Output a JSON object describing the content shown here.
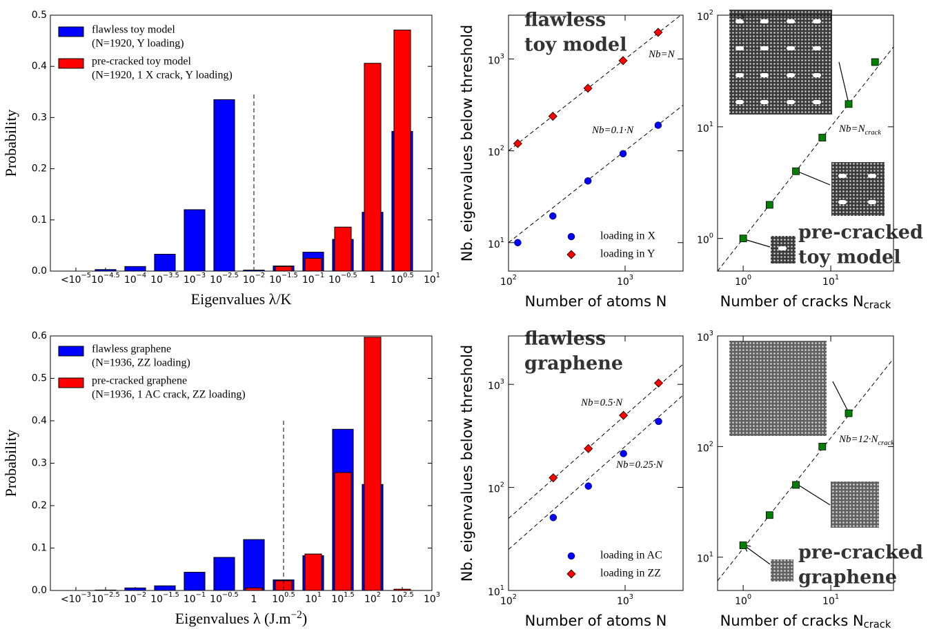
{
  "chart_data": [
    {
      "type": "bar",
      "xlabel": "Eigenvalues λ/K",
      "ylabel": "Probability",
      "categories": [
        {
          "text": "<10",
          "sup": "−5"
        },
        {
          "text": "10",
          "sup": "−4.5"
        },
        {
          "text": "10",
          "sup": "−4"
        },
        {
          "text": "10",
          "sup": "−3.5"
        },
        {
          "text": "10",
          "sup": "−3"
        },
        {
          "text": "10",
          "sup": "−2.5"
        },
        {
          "text": "10",
          "sup": "−2"
        },
        {
          "text": "10",
          "sup": "−1.5"
        },
        {
          "text": "10",
          "sup": "−1"
        },
        {
          "text": "10",
          "sup": "−0.5"
        },
        {
          "text": "1"
        },
        {
          "text": "10",
          "sup": "0.5"
        },
        {
          "text": "10",
          "sup": "1"
        }
      ],
      "series": [
        {
          "name": "flawless toy model",
          "detail": "(N=1920, Y loading)",
          "color": "#0000ff",
          "values": [
            0,
            0.003,
            0.009,
            0.033,
            0.12,
            0.335,
            0.002,
            0.01,
            0.037,
            0.062,
            0.115,
            0.273,
            null
          ]
        },
        {
          "name": "pre-cracked toy model",
          "detail": "(N=1920, 1 X crack, Y loading)",
          "color": "#ff0000",
          "values": [
            0,
            0,
            0,
            0,
            0,
            0,
            0,
            0.009,
            0.025,
            0.086,
            0.406,
            0.471,
            null
          ]
        }
      ],
      "ylim": [
        0,
        0.5
      ],
      "yticks": [
        {
          "value": 0,
          "label": "0.0"
        },
        0.1,
        0.2,
        0.3,
        0.4,
        0.5
      ]
    },
    {
      "type": "scatter",
      "xlabel": "Number of atoms N",
      "ylabel": "Nb. eigenvalues below threshold",
      "xscale": "log",
      "yscale": "log",
      "xlim": [
        100,
        3140
      ],
      "xticks": [
        {
          "value": 100,
          "label": {
            "text": "10",
            "sup": "2"
          }
        },
        {
          "value": 1000,
          "label": {
            "text": "10",
            "sup": "3"
          }
        }
      ],
      "ylim": [
        4.9,
        3000
      ],
      "yticks": [
        {
          "value": 10,
          "label": {
            "text": "10",
            "sup": "1"
          }
        },
        {
          "value": 100,
          "label": {
            "text": "10",
            "sup": "2"
          }
        },
        {
          "value": 1000,
          "label": {
            "text": "10",
            "sup": "3"
          }
        }
      ],
      "series": [
        {
          "name": "loading in X",
          "color": "#0000ff",
          "marker": "circle",
          "x": [
            120,
            240,
            480,
            960,
            1920
          ],
          "values": [
            10,
            19.5,
            47,
            93,
            190
          ]
        },
        {
          "name": "loading in Y",
          "color": "#ff0000",
          "marker": "diamond",
          "x": [
            120,
            240,
            480,
            960,
            1920
          ],
          "values": [
            120,
            238,
            480,
            960,
            1950
          ]
        }
      ],
      "fits": [
        {
          "label": {
            "text": "Nb=N"
          },
          "slope": 1
        },
        {
          "label": {
            "text": "Nb=0.1·N"
          },
          "slope": 0.1
        }
      ],
      "annotation": [
        "flawless",
        "toy model"
      ]
    },
    {
      "type": "scatter",
      "xlabel": {
        "text": "Number of cracks N",
        "sub": "crack"
      },
      "xscale": "log",
      "yscale": "log",
      "xlim": [
        0.51,
        52
      ],
      "xticks": [
        {
          "value": 1,
          "label": {
            "text": "10",
            "sup": "0"
          }
        },
        {
          "value": 10,
          "label": {
            "text": "10",
            "sup": "1"
          }
        }
      ],
      "ylim": [
        0.51,
        100
      ],
      "yticks": [
        {
          "value": 1,
          "label": {
            "text": "10",
            "sup": "0"
          }
        },
        {
          "value": 10,
          "label": {
            "text": "10",
            "sup": "1"
          }
        },
        {
          "value": 100,
          "label": {
            "text": "10",
            "sup": "2"
          }
        }
      ],
      "series": [
        {
          "color": "#008000",
          "marker": "square",
          "x": [
            1,
            2,
            4,
            8,
            16,
            32
          ],
          "values": [
            1,
            2,
            4,
            8,
            16,
            38
          ]
        }
      ],
      "fits": [
        {
          "label": {
            "text": "Nb=N",
            "sub": "crack"
          },
          "slope": 1
        }
      ],
      "annotation": [
        "pre-cracked",
        "toy model"
      ]
    },
    {
      "type": "bar",
      "xlabel": {
        "text": "Eigenvalues λ (J.m",
        "sup": "−2",
        "tail": ")"
      },
      "ylabel": "Probability",
      "categories": [
        {
          "text": "<10",
          "sup": "−3"
        },
        {
          "text": "10",
          "sup": "−2.5"
        },
        {
          "text": "10",
          "sup": "−2"
        },
        {
          "text": "10",
          "sup": "−1.5"
        },
        {
          "text": "10",
          "sup": "−1"
        },
        {
          "text": "10",
          "sup": "−0.5"
        },
        {
          "text": "1"
        },
        {
          "text": "10",
          "sup": "0.5"
        },
        {
          "text": "10",
          "sup": "1"
        },
        {
          "text": "10",
          "sup": "1.5"
        },
        {
          "text": "10",
          "sup": "2"
        },
        {
          "text": "10",
          "sup": "2.5"
        },
        {
          "text": "10",
          "sup": "3"
        }
      ],
      "series": [
        {
          "name": "flawless graphene",
          "detail": "(N=1936, ZZ loading)",
          "color": "#0000ff",
          "values": [
            0,
            0.001,
            0.006,
            0.011,
            0.043,
            0.078,
            0.12,
            0.025,
            0.082,
            0.38,
            0.25,
            0,
            null
          ]
        },
        {
          "name": "pre-cracked graphene",
          "detail": "(N=1936, 1 AC crack, ZZ loading)",
          "color": "#ff0000",
          "values": [
            0,
            0,
            0,
            0,
            0,
            0,
            0.006,
            0.023,
            0.086,
            0.278,
            0.597,
            0.003,
            null
          ]
        }
      ],
      "ylim": [
        0,
        0.6
      ],
      "yticks": [
        {
          "value": 0,
          "label": "0.0"
        },
        0.1,
        0.2,
        0.3,
        0.4,
        0.5,
        0.6
      ]
    },
    {
      "type": "scatter",
      "xlabel": "Number of atoms N",
      "ylabel": "Nb. eigenvalues below threshold",
      "xscale": "log",
      "yscale": "log",
      "xlim": [
        100,
        3140
      ],
      "xticks": [
        {
          "value": 100,
          "label": {
            "text": "10",
            "sup": "2"
          }
        },
        {
          "value": 1000,
          "label": {
            "text": "10",
            "sup": "3"
          }
        }
      ],
      "ylim": [
        10,
        2950
      ],
      "yticks": [
        {
          "value": 10,
          "label": {
            "text": "10",
            "sup": "1"
          }
        },
        {
          "value": 100,
          "label": {
            "text": "10",
            "sup": "2"
          }
        },
        {
          "value": 1000,
          "label": {
            "text": "10",
            "sup": "3"
          }
        }
      ],
      "series": [
        {
          "name": "loading in AC",
          "color": "#0000ff",
          "marker": "circle",
          "x": [
            242,
            484,
            968,
            1936
          ],
          "values": [
            51,
            103,
            213,
            437
          ]
        },
        {
          "name": "loading in ZZ",
          "color": "#ff0000",
          "marker": "diamond",
          "x": [
            242,
            484,
            968,
            1936
          ],
          "values": [
            124,
            238,
            500,
            1030
          ]
        }
      ],
      "fits": [
        {
          "label": {
            "text": "Nb=0.5·N"
          },
          "slope": 0.5
        },
        {
          "label": {
            "text": "Nb=0.25·N"
          },
          "slope": 0.25
        }
      ],
      "annotation": [
        "flawless",
        "graphene"
      ]
    },
    {
      "type": "scatter",
      "xlabel": {
        "text": "Number of cracks N",
        "sub": "crack"
      },
      "xscale": "log",
      "yscale": "log",
      "xlim": [
        0.51,
        52
      ],
      "xticks": [
        {
          "value": 1,
          "label": {
            "text": "10",
            "sup": "0"
          }
        },
        {
          "value": 10,
          "label": {
            "text": "10",
            "sup": "1"
          }
        }
      ],
      "ylim": [
        5,
        1000
      ],
      "yticks": [
        {
          "value": 10,
          "label": {
            "text": "10",
            "sup": "1"
          }
        },
        {
          "value": 100,
          "label": {
            "text": "10",
            "sup": "2"
          }
        },
        {
          "value": 1000,
          "label": {
            "text": "10",
            "sup": "3"
          }
        }
      ],
      "series": [
        {
          "color": "#008000",
          "marker": "square",
          "x": [
            1,
            2,
            4,
            8,
            16
          ],
          "values": [
            12.8,
            24,
            45,
            100,
            200
          ]
        }
      ],
      "fits": [
        {
          "label": {
            "text": "Nb=12·N",
            "sub": "crack"
          },
          "slope": 12
        }
      ],
      "annotation": [
        "pre-cracked",
        "graphene"
      ]
    }
  ]
}
